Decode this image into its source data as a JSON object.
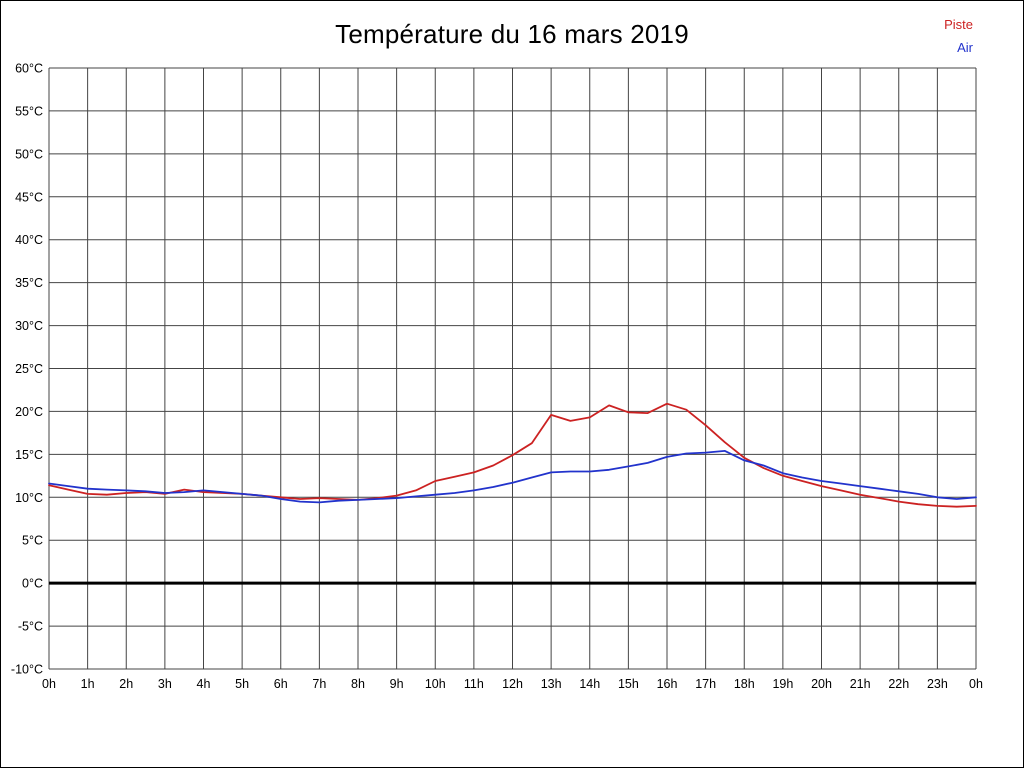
{
  "title": "Température du 16 mars 2019",
  "legend": [
    {
      "label": "Piste",
      "color": "#cc2222"
    },
    {
      "label": "Air",
      "color": "#2233cc"
    }
  ],
  "colors": {
    "grid": "#444444",
    "zero_line": "#000000",
    "text": "#000000",
    "background": "#ffffff"
  },
  "chart_data": {
    "type": "line",
    "title": "Température du 16 mars 2019",
    "xlabel": "",
    "ylabel": "",
    "xlim": [
      0,
      24
    ],
    "ylim": [
      -10,
      60
    ],
    "y_tick_step": 5,
    "grid": true,
    "zero_line": true,
    "legend_position": "top-right",
    "x_tick_labels": [
      "0h",
      "1h",
      "2h",
      "3h",
      "4h",
      "5h",
      "6h",
      "7h",
      "8h",
      "9h",
      "10h",
      "11h",
      "12h",
      "13h",
      "14h",
      "15h",
      "16h",
      "17h",
      "18h",
      "19h",
      "20h",
      "21h",
      "22h",
      "23h",
      "0h"
    ],
    "y_tick_labels": [
      "60°C",
      "55°C",
      "50°C",
      "45°C",
      "40°C",
      "35°C",
      "30°C",
      "25°C",
      "20°C",
      "15°C",
      "10°C",
      "5°C",
      "0°C",
      "-5°C",
      "-10°C"
    ],
    "x": [
      0,
      0.5,
      1,
      1.5,
      2,
      2.5,
      3,
      3.5,
      4,
      4.5,
      5,
      5.5,
      6,
      6.5,
      7,
      7.5,
      8,
      8.5,
      9,
      9.5,
      10,
      10.5,
      11,
      11.5,
      12,
      12.5,
      13,
      13.5,
      14,
      14.5,
      15,
      15.5,
      16,
      16.5,
      17,
      17.5,
      18,
      18.5,
      19,
      19.5,
      20,
      20.5,
      21,
      21.5,
      22,
      22.5,
      23,
      23.5,
      24
    ],
    "series": [
      {
        "name": "Piste",
        "color": "#cc2222",
        "values": [
          11.4,
          10.9,
          10.4,
          10.3,
          10.5,
          10.6,
          10.4,
          10.9,
          10.6,
          10.5,
          10.4,
          10.2,
          10.0,
          9.8,
          9.9,
          9.8,
          9.7,
          9.9,
          10.2,
          10.8,
          11.9,
          12.4,
          12.9,
          13.7,
          14.9,
          16.3,
          19.6,
          18.9,
          19.3,
          20.7,
          19.9,
          19.8,
          20.9,
          20.2,
          18.4,
          16.4,
          14.6,
          13.4,
          12.5,
          11.9,
          11.3,
          10.8,
          10.3,
          9.9,
          9.5,
          9.2,
          9.0,
          8.9,
          9.0
        ]
      },
      {
        "name": "Air",
        "color": "#2233cc",
        "values": [
          11.6,
          11.3,
          11.0,
          10.9,
          10.8,
          10.7,
          10.5,
          10.6,
          10.8,
          10.6,
          10.4,
          10.2,
          9.8,
          9.5,
          9.4,
          9.6,
          9.7,
          9.8,
          9.9,
          10.1,
          10.3,
          10.5,
          10.8,
          11.2,
          11.7,
          12.3,
          12.9,
          13.0,
          13.0,
          13.2,
          13.6,
          14.0,
          14.7,
          15.1,
          15.2,
          15.4,
          14.3,
          13.7,
          12.8,
          12.3,
          11.9,
          11.6,
          11.3,
          11.0,
          10.7,
          10.4,
          10.0,
          9.8,
          10.0
        ]
      }
    ]
  }
}
